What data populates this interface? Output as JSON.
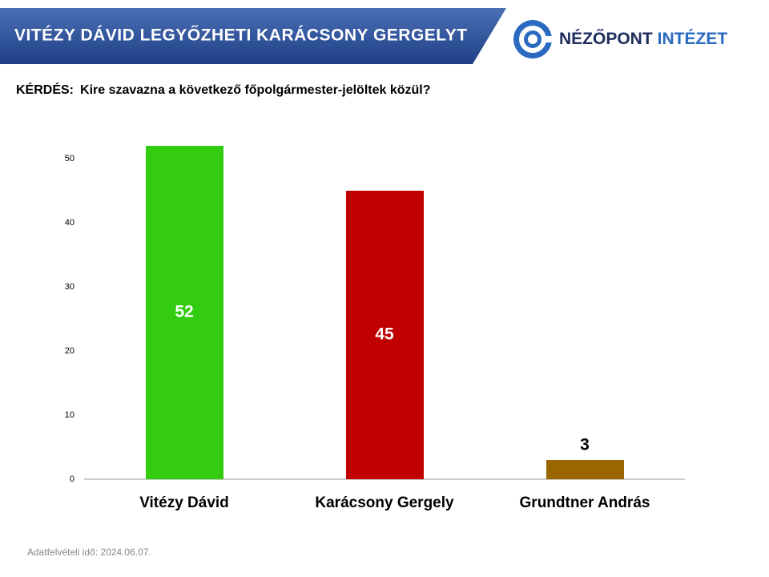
{
  "header": {
    "title": "VITÉZY DÁVID LEGYŐZHETI KARÁCSONY GERGELYT",
    "logo_first": "NÉZŐPONT",
    "logo_second": "INTÉZET"
  },
  "question": {
    "label": "KÉRDÉS:",
    "text": "Kire szavazna a következő főpolgármester-jelöltek közül?"
  },
  "footer": "Adatfelvételi idő: 2024.06.07.",
  "chart_data": {
    "type": "bar",
    "categories": [
      "Vitézy Dávid",
      "Karácsony Gergely",
      "Grundtner András"
    ],
    "values": [
      52,
      45,
      3
    ],
    "colors": [
      "#33cc11",
      "#c00000",
      "#996600"
    ],
    "ylim": [
      0,
      55
    ],
    "yticks": [
      0,
      10,
      20,
      30,
      40,
      50
    ]
  }
}
